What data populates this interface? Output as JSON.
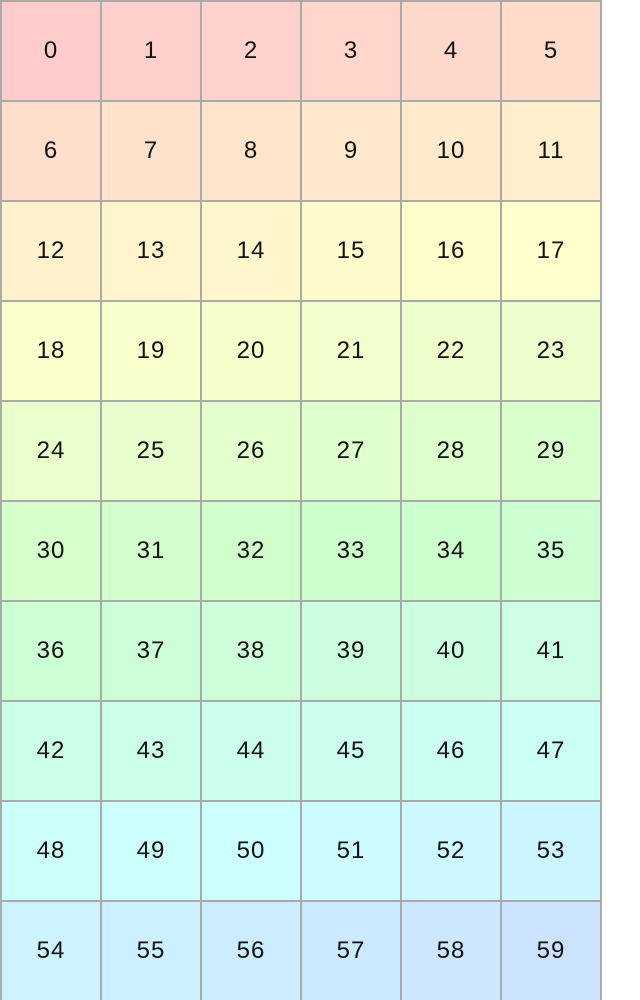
{
  "grid": {
    "columns": 6,
    "cells": [
      "0",
      "1",
      "2",
      "3",
      "4",
      "5",
      "6",
      "7",
      "8",
      "9",
      "10",
      "11",
      "12",
      "13",
      "14",
      "15",
      "16",
      "17",
      "18",
      "19",
      "20",
      "21",
      "22",
      "23",
      "24",
      "25",
      "26",
      "27",
      "28",
      "29",
      "30",
      "31",
      "32",
      "33",
      "34",
      "35",
      "36",
      "37",
      "38",
      "39",
      "40",
      "41",
      "42",
      "43",
      "44",
      "45",
      "46",
      "47",
      "48",
      "49",
      "50",
      "51",
      "52",
      "53",
      "54",
      "55",
      "56",
      "57",
      "58",
      "59"
    ],
    "border_color": "#aaaaaa",
    "first_cell_color": "#ffcccc",
    "last_cell_color": "#cce0ff"
  }
}
